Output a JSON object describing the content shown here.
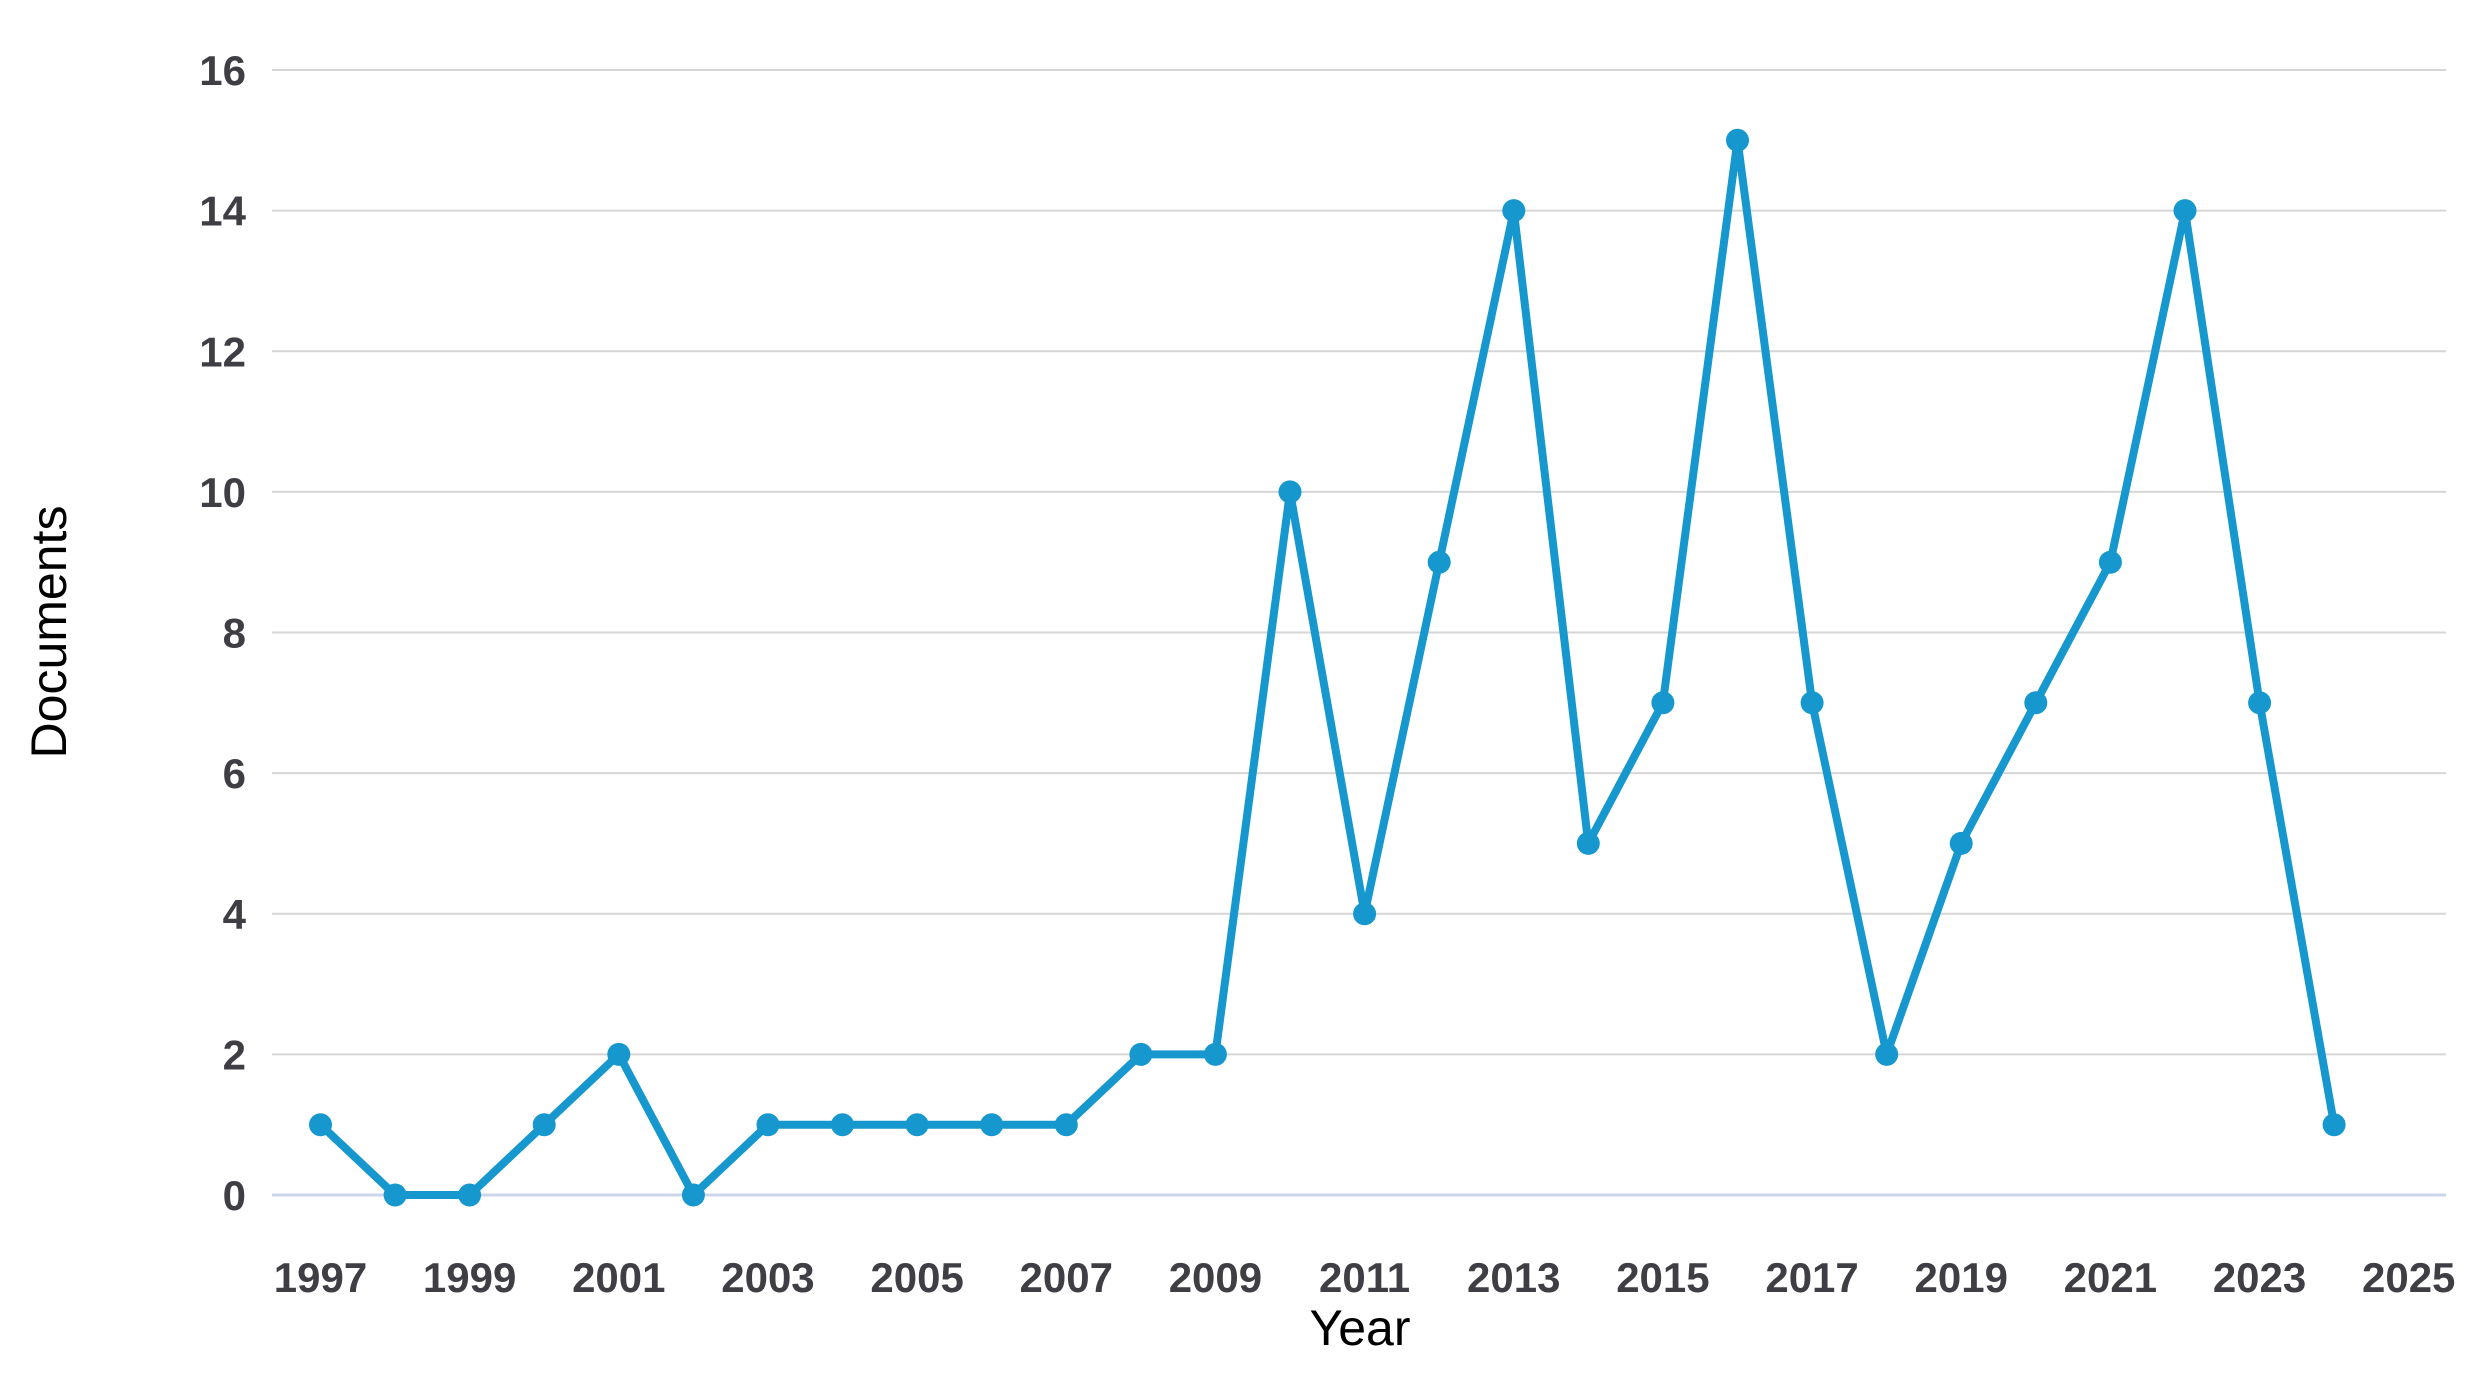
{
  "chart_data": {
    "type": "line",
    "xlabel": "Year",
    "ylabel": "Documents",
    "x": [
      1997,
      1998,
      1999,
      2000,
      2001,
      2002,
      2003,
      2004,
      2005,
      2006,
      2007,
      2008,
      2009,
      2010,
      2011,
      2012,
      2013,
      2014,
      2015,
      2016,
      2017,
      2018,
      2019,
      2020,
      2021,
      2022,
      2023,
      2024
    ],
    "values": [
      1,
      0,
      0,
      1,
      2,
      0,
      1,
      1,
      1,
      1,
      1,
      2,
      2,
      10,
      4,
      9,
      14,
      5,
      7,
      15,
      7,
      2,
      5,
      7,
      9,
      14,
      7,
      1
    ],
    "xticks": [
      1997,
      1999,
      2001,
      2003,
      2005,
      2007,
      2009,
      2011,
      2013,
      2015,
      2017,
      2019,
      2021,
      2023,
      2025
    ],
    "yticks": [
      0,
      2,
      4,
      6,
      8,
      10,
      12,
      14,
      16
    ],
    "xlim": [
      1996.35,
      2025.5
    ],
    "ylim": [
      0,
      16
    ],
    "grid": "horizontal",
    "legend_position": "none",
    "colors": {
      "line": "#1697cd",
      "marker": "#1697cd",
      "grid_line": "#d6d6d6",
      "zero_line": "#ccd5ea",
      "text": "#3e3e44"
    }
  }
}
